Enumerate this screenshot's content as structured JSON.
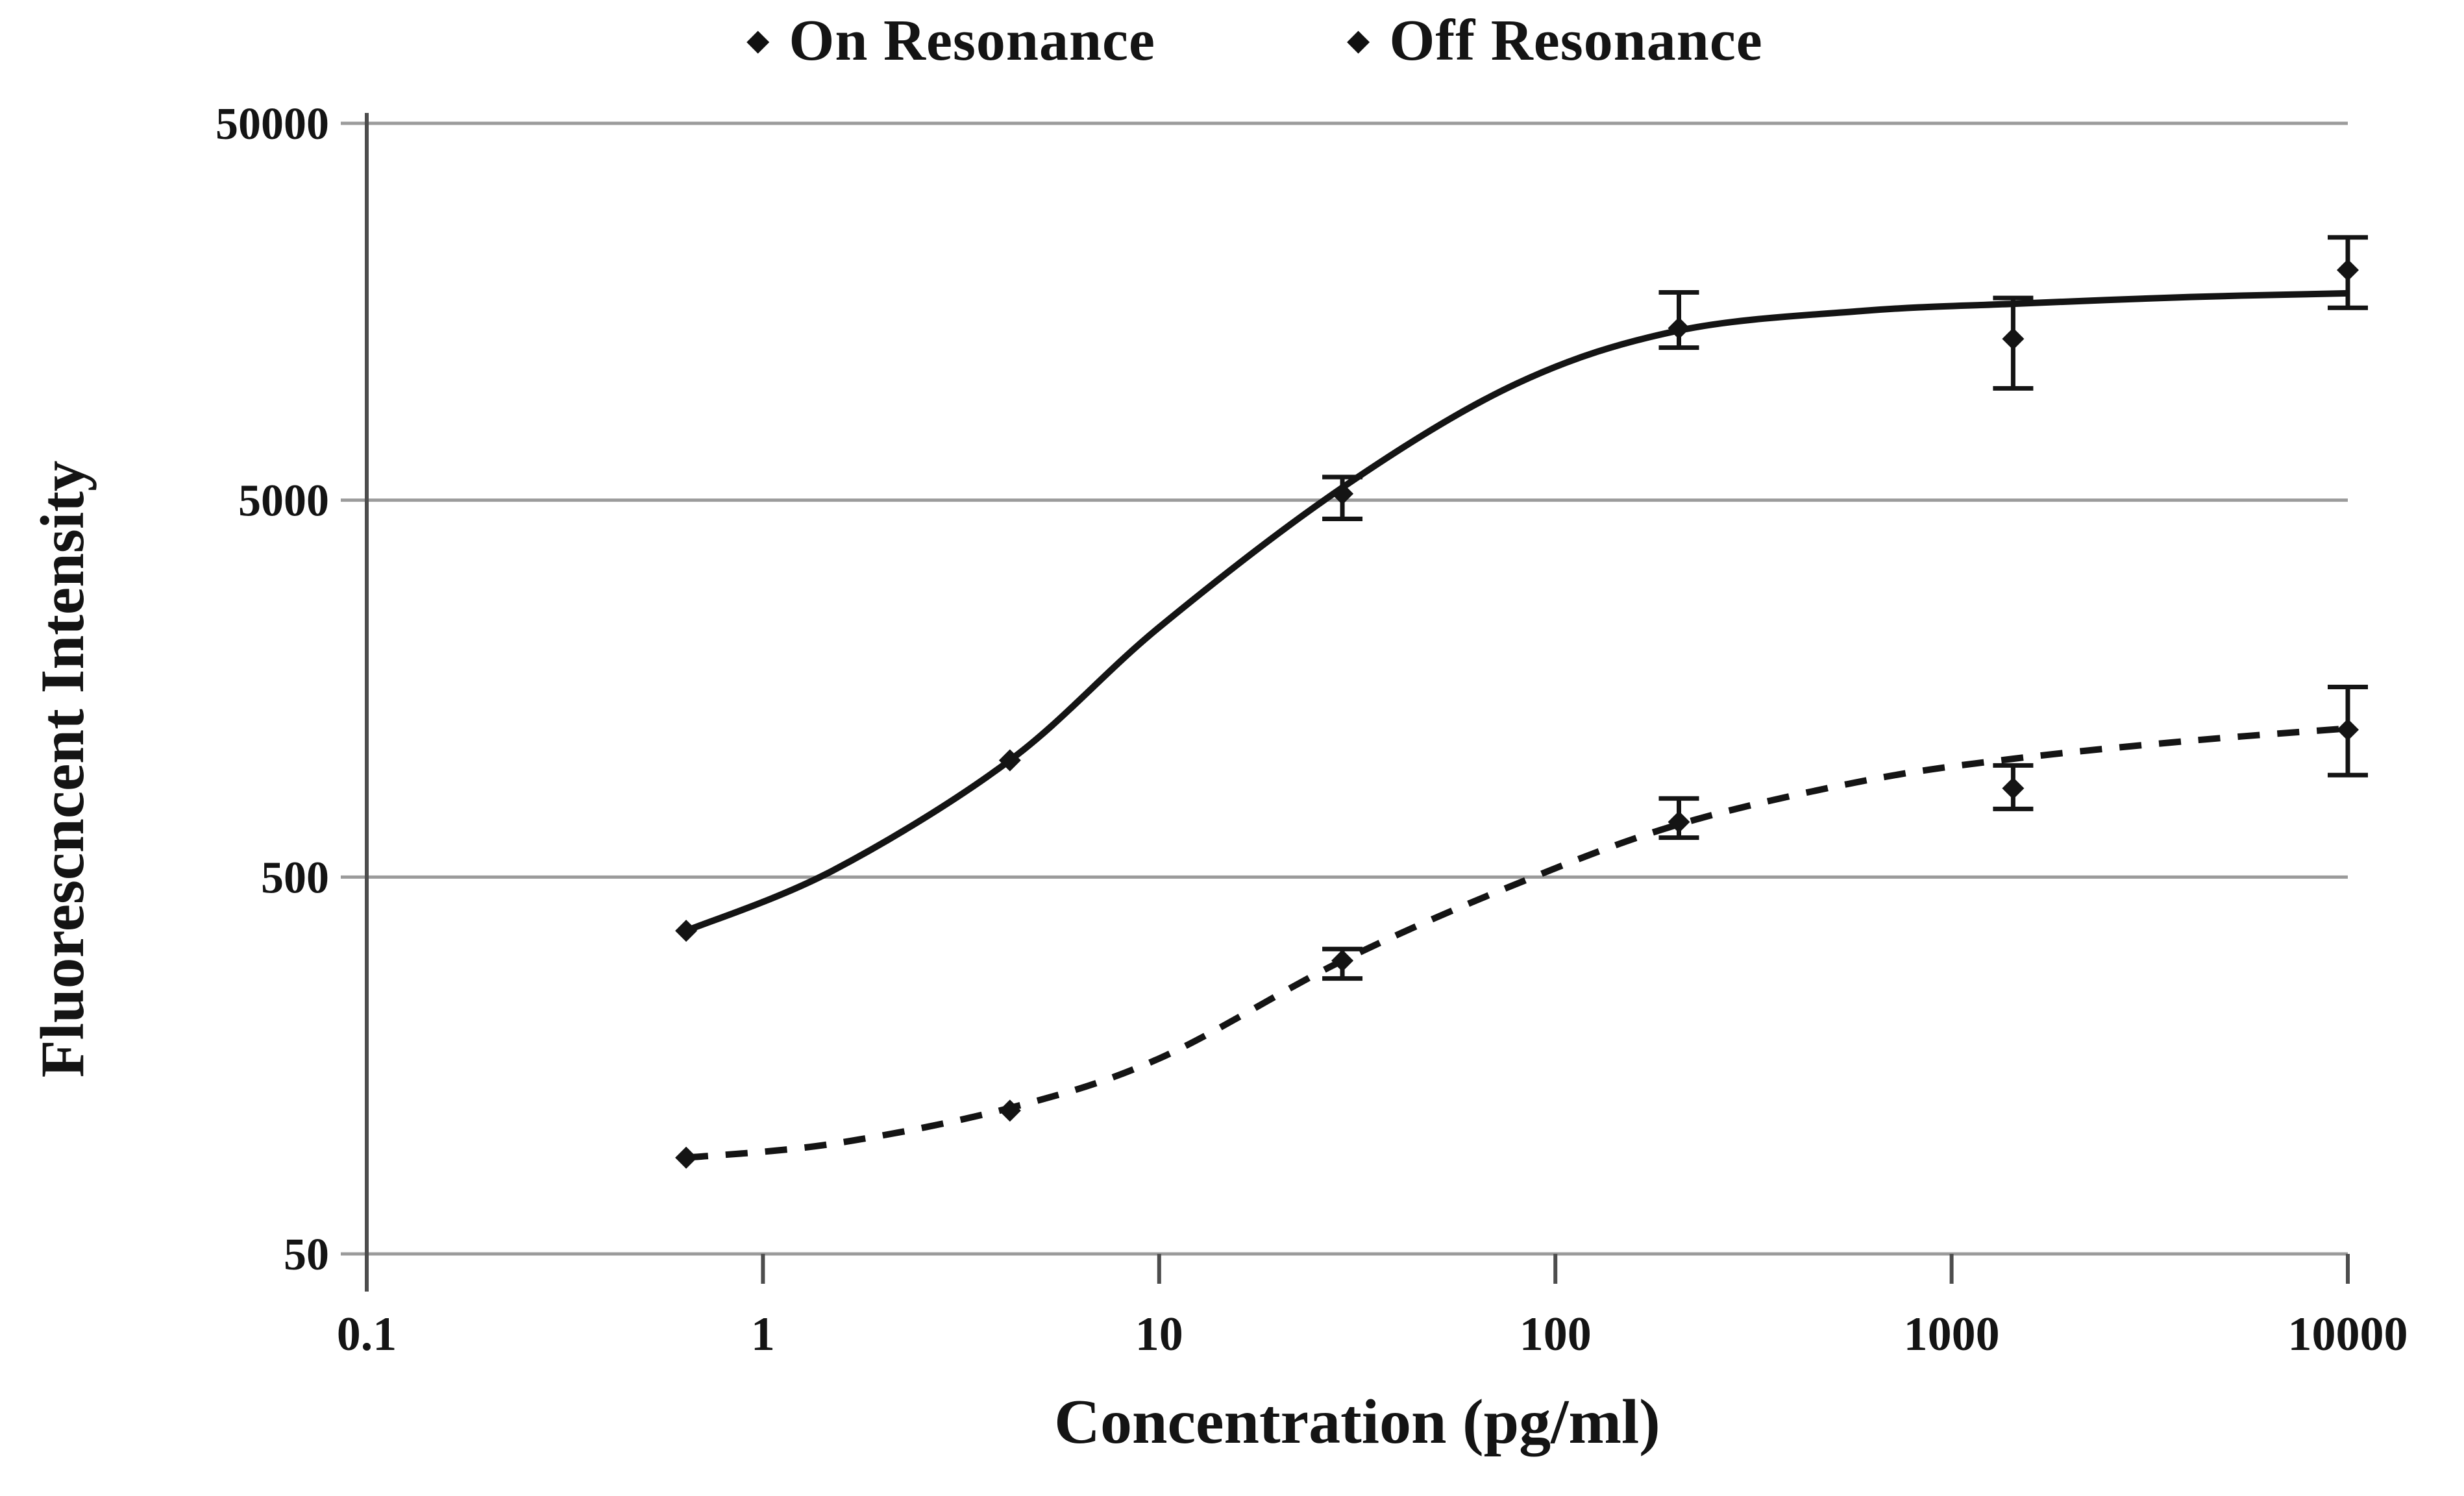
{
  "figure": {
    "background": "#ffffff"
  },
  "legend": {
    "items": [
      {
        "marker": "diamond-icon",
        "label": "On Resonance"
      },
      {
        "marker": "diamond-icon",
        "label": "Off Resonance"
      }
    ]
  },
  "colors": {
    "grid": "#9b9b9b",
    "axis": "#4d4d4d",
    "series": "#141414",
    "text": "#141414",
    "background": "#ffffff"
  },
  "chart_data": {
    "type": "line",
    "title": "",
    "xlabel": "Concentration (pg/ml)",
    "ylabel": "Fluorescncent Intensity",
    "x_scale": "log",
    "y_scale": "log",
    "xlim": [
      0.1,
      10000
    ],
    "ylim": [
      50,
      50000
    ],
    "grid": "horizontal",
    "legend_position": "top",
    "x_ticks": [
      0.1,
      1,
      10,
      100,
      1000,
      10000
    ],
    "x_tick_labels": [
      "0.1",
      "1",
      "10",
      "100",
      "1000",
      "10000"
    ],
    "y_ticks": [
      50,
      500,
      5000,
      50000
    ],
    "y_tick_labels": [
      "50",
      "500",
      "5000",
      "50000"
    ],
    "series": [
      {
        "name": "On Resonance",
        "line_style": "solid",
        "marker": "diamond",
        "points": [
          {
            "x": 0.64,
            "y": 360
          },
          {
            "x": 4.2,
            "y": 1020
          },
          {
            "x": 29,
            "y": 5200,
            "y_err_low": 4460,
            "y_err_high": 5760
          },
          {
            "x": 205,
            "y": 14300,
            "y_err_low": 12700,
            "y_err_high": 17800
          },
          {
            "x": 1430,
            "y": 13400,
            "y_err_low": 9900,
            "y_err_high": 17200
          },
          {
            "x": 10000,
            "y": 20400,
            "y_err_low": 16200,
            "y_err_high": 24900
          }
        ],
        "fit_curve": [
          [
            0.64,
            360
          ],
          [
            1.5,
            520
          ],
          [
            4.2,
            1020
          ],
          [
            10,
            2300
          ],
          [
            29,
            5400
          ],
          [
            80,
            10200
          ],
          [
            205,
            14100
          ],
          [
            600,
            15900
          ],
          [
            1430,
            16600
          ],
          [
            4000,
            17300
          ],
          [
            10000,
            17700
          ]
        ]
      },
      {
        "name": "Off Resonance",
        "line_style": "dashed",
        "marker": "diamond",
        "points": [
          {
            "x": 0.64,
            "y": 90
          },
          {
            "x": 4.2,
            "y": 120
          },
          {
            "x": 29,
            "y": 300,
            "y_err_low": 269,
            "y_err_high": 322
          },
          {
            "x": 205,
            "y": 700,
            "y_err_low": 636,
            "y_err_high": 808
          },
          {
            "x": 1430,
            "y": 860,
            "y_err_low": 758,
            "y_err_high": 989
          },
          {
            "x": 10000,
            "y": 1230,
            "y_err_low": 932,
            "y_err_high": 1597
          }
        ],
        "fit_curve": [
          [
            0.64,
            90
          ],
          [
            1.5,
            98
          ],
          [
            4.2,
            122
          ],
          [
            10,
            165
          ],
          [
            29,
            300
          ],
          [
            80,
            480
          ],
          [
            205,
            690
          ],
          [
            600,
            900
          ],
          [
            1430,
            1030
          ],
          [
            4000,
            1150
          ],
          [
            10000,
            1240
          ]
        ]
      }
    ]
  }
}
